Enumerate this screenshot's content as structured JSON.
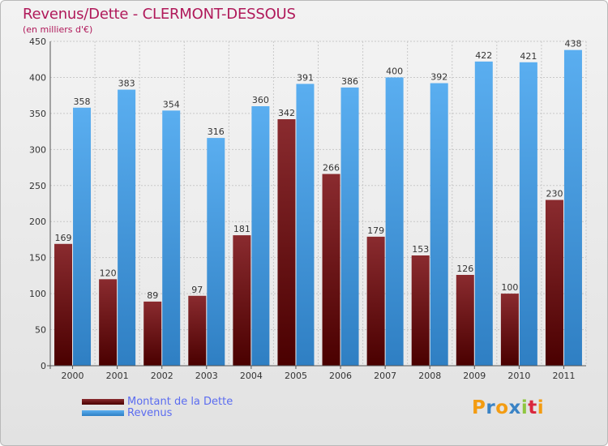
{
  "title": "Revenus/Dette - CLERMONT-DESSOUS",
  "subtitle": "(en milliers d'€)",
  "logo": {
    "text": "Proxiti",
    "letters": [
      "P",
      "r",
      "o",
      "x",
      "i",
      "t",
      "i"
    ],
    "colors": [
      "#f39c12",
      "#3a83c5",
      "#f39c12",
      "#3a83c5",
      "#8fc640",
      "#d9263c",
      "#f39c12"
    ]
  },
  "colors": {
    "dette": "#7d1f22",
    "revenus": "#4e9de0",
    "title": "#b0195a",
    "legend_text": "#5b6cf0"
  },
  "chart_data": {
    "type": "bar",
    "title": "Revenus/Dette - CLERMONT-DESSOUS",
    "ylabel": "(en milliers d'€)",
    "categories": [
      "2000",
      "2001",
      "2002",
      "2003",
      "2004",
      "2005",
      "2006",
      "2007",
      "2008",
      "2009",
      "2010",
      "2011"
    ],
    "series": [
      {
        "name": "Montant de la Dette",
        "values": [
          169,
          120,
          89,
          97,
          181,
          342,
          266,
          179,
          153,
          126,
          100,
          230
        ]
      },
      {
        "name": "Revenus",
        "values": [
          358,
          383,
          354,
          316,
          360,
          391,
          386,
          400,
          392,
          422,
          421,
          438
        ]
      }
    ],
    "ylim": [
      0,
      450
    ],
    "yticks": [
      0,
      50,
      100,
      150,
      200,
      250,
      300,
      350,
      400,
      450
    ],
    "grid": true,
    "legend": "bottom-left"
  }
}
